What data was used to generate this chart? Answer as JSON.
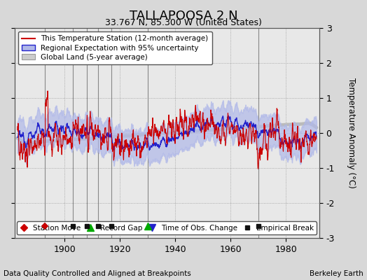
{
  "title": "TALLAPOOSA 2 N",
  "subtitle": "33.767 N, 85.300 W (United States)",
  "ylabel": "Temperature Anomaly (°C)",
  "xlabel_note": "Data Quality Controlled and Aligned at Breakpoints",
  "credit": "Berkeley Earth",
  "xlim": [
    1882,
    1992
  ],
  "ylim": [
    -3,
    3
  ],
  "yticks": [
    -3,
    -2,
    -1,
    0,
    1,
    2,
    3
  ],
  "xticks": [
    1900,
    1920,
    1940,
    1960,
    1980
  ],
  "bg_color": "#d8d8d8",
  "plot_bg_color": "#e8e8e8",
  "station_color": "#cc0000",
  "regional_color": "#2222cc",
  "regional_fill_color": "#aaaadd",
  "global_color": "#bbbbbb",
  "vertical_line_years": [
    1893,
    1903,
    1908,
    1912,
    1917,
    1930,
    1970
  ],
  "station_move_years": [
    1893
  ],
  "record_gap_years": [
    1930
  ],
  "time_obs_years": [],
  "empirical_break_years": [
    1903,
    1908,
    1912,
    1917,
    1970
  ],
  "seed": 12345
}
